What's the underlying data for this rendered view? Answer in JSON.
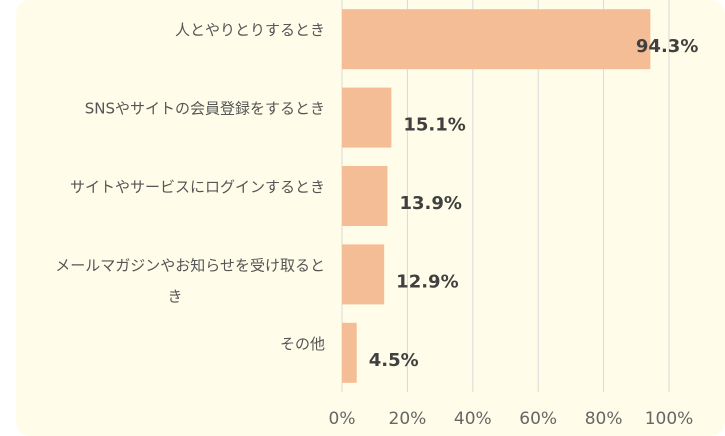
{
  "chart_data": {
    "type": "bar",
    "orientation": "horizontal",
    "categories": [
      "人とやりとりするとき",
      "SNSやサイトの会員登録をするとき",
      "サイトやサービスにログインするとき",
      "メールマガジンやお知らせを受け取るとき",
      "その他"
    ],
    "values": [
      94.3,
      15.1,
      13.9,
      12.9,
      4.5
    ],
    "data_labels": [
      "94.3%",
      "15.1%",
      "13.9%",
      "12.9%",
      "4.5%"
    ],
    "xlim": [
      0,
      100
    ],
    "x_ticks": [
      0,
      20,
      40,
      60,
      80,
      100
    ],
    "x_tick_labels": [
      "0%",
      "20%",
      "40%",
      "60%",
      "80%",
      "100%"
    ],
    "grid": true,
    "legend": "none",
    "colors": {
      "bar": "#f4bd95",
      "grid": "#d9d9d9",
      "background": "#fffde9"
    }
  }
}
